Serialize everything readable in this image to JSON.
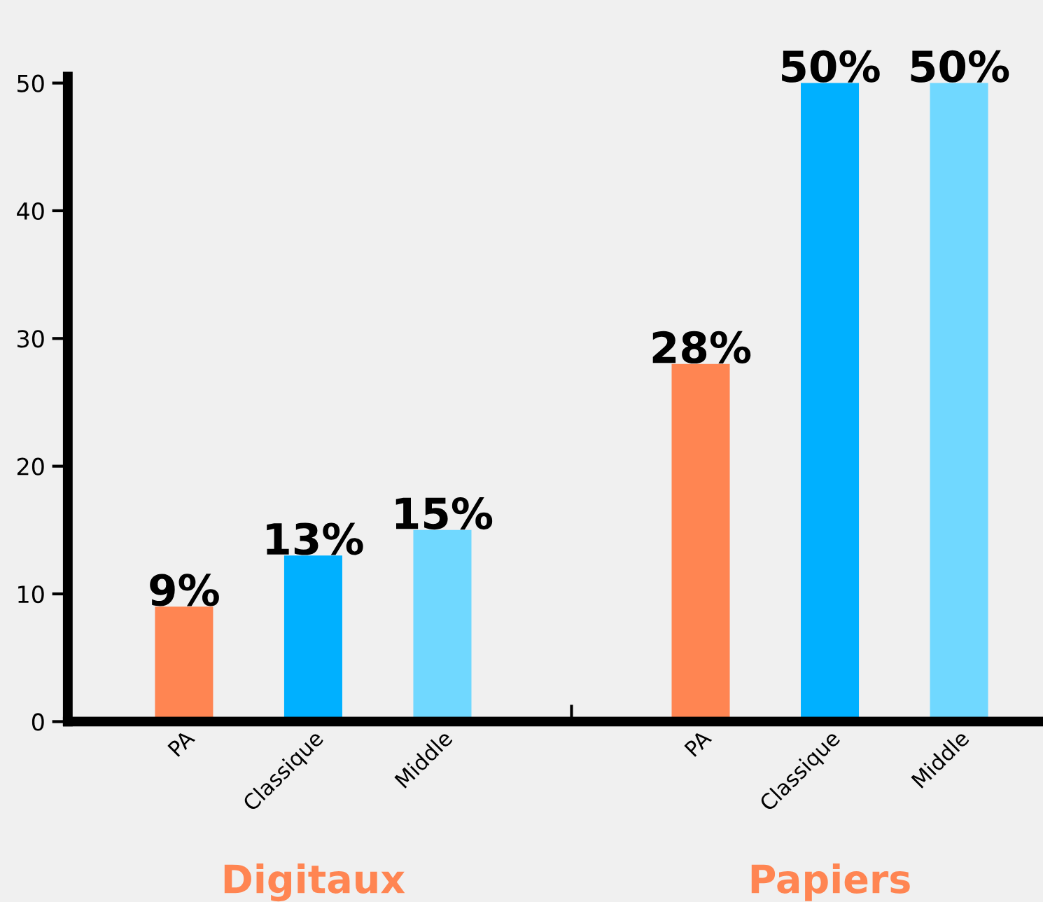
{
  "chart_data": {
    "type": "bar",
    "categories": [
      "PA",
      "Classique",
      "Middle",
      null,
      "PA",
      "Classique",
      "Middle"
    ],
    "values": [
      9,
      13,
      15,
      null,
      28,
      50,
      50
    ],
    "colors": [
      "#ff8552",
      "#00b0ff",
      "#70d8ff",
      null,
      "#ff8552",
      "#00b0ff",
      "#70d8ff"
    ],
    "value_labels": [
      "9%",
      "13%",
      "15%",
      null,
      "28%",
      "50%",
      "50%"
    ],
    "ylim": [
      0,
      50.5
    ],
    "yticks": [
      0,
      10,
      20,
      30,
      40,
      50
    ],
    "grid": false,
    "legend": false,
    "annotations": [
      "Digitaux",
      "Papiers"
    ]
  }
}
